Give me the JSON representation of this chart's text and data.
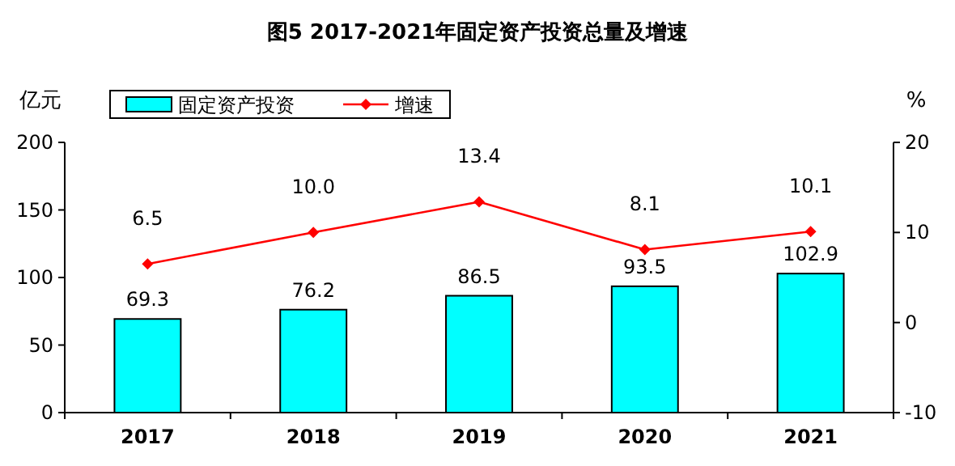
{
  "chart_data": {
    "type": "bar",
    "title": "图5 2017-2021年固定资产投资总量及增速",
    "categories": [
      "2017",
      "2018",
      "2019",
      "2020",
      "2021"
    ],
    "ylabel": "亿元",
    "y2label": "%",
    "ylim": [
      0,
      200
    ],
    "yticks": [
      0,
      50,
      100,
      150,
      200
    ],
    "y2lim": [
      -10,
      20
    ],
    "y2ticks": [
      -10,
      0,
      10,
      20
    ],
    "legend": "top",
    "grid": false,
    "series": [
      {
        "name": "固定资产投资",
        "color": "#00ffff",
        "values": [
          69.3,
          76.2,
          86.5,
          93.5,
          102.9
        ],
        "value_labels": [
          "69.3",
          "76.2",
          "86.5",
          "93.5",
          "102.9"
        ]
      },
      {
        "name": "增速",
        "type": "line",
        "axis": "y2",
        "color": "#ff0000",
        "marker": "diamond",
        "values": [
          6.5,
          10.0,
          13.4,
          8.1,
          10.1
        ],
        "value_labels": [
          "6.5",
          "10.0",
          "13.4",
          "8.1",
          "10.1"
        ]
      }
    ]
  }
}
